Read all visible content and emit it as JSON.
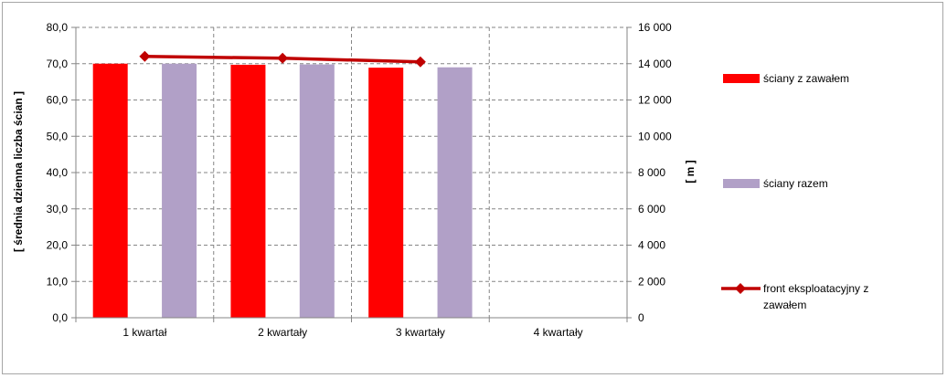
{
  "chart_data": {
    "type": "bar",
    "categories": [
      "1 kwartał",
      "2 kwartały",
      "3 kwartały",
      "4 kwartały"
    ],
    "series": [
      {
        "name": "ściany z zawałem",
        "kind": "bar",
        "axis": "left",
        "color": "#ff0000",
        "values": [
          70.0,
          69.7,
          68.9,
          null
        ]
      },
      {
        "name": "ściany razem",
        "kind": "bar",
        "axis": "left",
        "color": "#b1a0c7",
        "values": [
          70.0,
          69.8,
          69.0,
          null
        ]
      },
      {
        "name": "front eksploatacyjny z zawałem",
        "kind": "line",
        "axis": "right",
        "color": "#c00000",
        "values": [
          14400,
          14300,
          14100,
          null
        ]
      }
    ],
    "ylabel": "[ średnia dzienna liczba ścian ]",
    "y2label": "[ m ]",
    "ylim": [
      0,
      80
    ],
    "y2lim": [
      0,
      16000
    ],
    "yticks": [
      "0,0",
      "10,0",
      "20,0",
      "30,0",
      "40,0",
      "50,0",
      "60,0",
      "70,0",
      "80,0"
    ],
    "y2ticks": [
      "0",
      "2 000",
      "4 000",
      "6 000",
      "8 000",
      "10 000",
      "12 000",
      "14 000",
      "16 000"
    ],
    "grid": "dashed",
    "legend_position": "right"
  }
}
